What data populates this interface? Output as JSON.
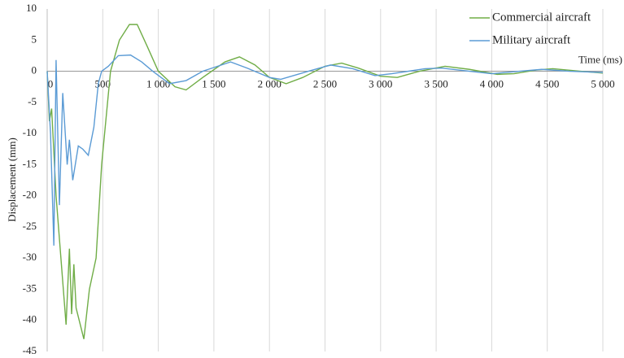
{
  "chart_data": {
    "type": "line",
    "xlabel": "Time (ms)",
    "ylabel": "Displacement (mm)",
    "xlim": [
      0,
      5000
    ],
    "ylim": [
      -45,
      10
    ],
    "xticks": [
      0,
      500,
      {
        "value": 1000,
        "label": "1 000"
      },
      {
        "value": 1500,
        "label": "1 500"
      },
      {
        "value": 2000,
        "label": "2 000"
      },
      {
        "value": 2500,
        "label": "2 500"
      },
      {
        "value": 3000,
        "label": "3 000"
      },
      {
        "value": 3500,
        "label": "3 500"
      },
      {
        "value": 4000,
        "label": "4 000"
      },
      {
        "value": 4500,
        "label": "4 500"
      },
      {
        "value": 5000,
        "label": "5 000"
      }
    ],
    "yticks": [
      10,
      5,
      0,
      -5,
      -10,
      -15,
      -20,
      -25,
      -30,
      -35,
      -40,
      -45
    ],
    "grid": true,
    "legend": "upper right",
    "series": [
      {
        "name": "Commercial aircraft",
        "color": "#70ad47",
        "x": [
          0,
          20,
          40,
          80,
          170,
          200,
          220,
          240,
          260,
          330,
          380,
          440,
          490,
          570,
          650,
          740,
          810,
          900,
          1000,
          1150,
          1250,
          1400,
          1600,
          1730,
          1870,
          2000,
          2150,
          2300,
          2500,
          2650,
          2800,
          3000,
          3150,
          3350,
          3580,
          3800,
          4050,
          4200,
          4400,
          4550,
          4800,
          5000
        ],
        "values": [
          0,
          -8,
          -6,
          -20,
          -40.7,
          -28.5,
          -39,
          -31,
          -38,
          -43,
          -35,
          -30,
          -15,
          0,
          5,
          7.5,
          7.5,
          4,
          0,
          -2.5,
          -3,
          -1,
          1.5,
          2.3,
          1,
          -1,
          -2,
          -1,
          0.8,
          1.3,
          0.5,
          -0.8,
          -1,
          0,
          0.8,
          0.3,
          -0.5,
          -0.4,
          0.2,
          0.4,
          0,
          -0.3
        ]
      },
      {
        "name": "Military aircraft",
        "color": "#5b9bd5",
        "x": [
          0,
          30,
          60,
          80,
          110,
          140,
          180,
          200,
          230,
          280,
          320,
          370,
          420,
          460,
          490,
          550,
          640,
          750,
          850,
          950,
          1100,
          1250,
          1400,
          1650,
          1800,
          2000,
          2100,
          2350,
          2550,
          2750,
          2950,
          3100,
          3400,
          3550,
          3800,
          4000,
          4250,
          4450,
          4700,
          5000
        ],
        "values": [
          0,
          -10,
          -28,
          1.8,
          -21.5,
          -3.5,
          -15,
          -11,
          -17.5,
          -12,
          -12.5,
          -13.5,
          -9,
          -2,
          0,
          0.8,
          2.5,
          2.6,
          1.5,
          0,
          -2,
          -1.5,
          0,
          1.5,
          0.5,
          -1,
          -1.3,
          0,
          1,
          0.4,
          -0.7,
          -0.4,
          0.4,
          0.5,
          0,
          -0.4,
          0,
          0.3,
          0,
          -0.2
        ]
      }
    ]
  }
}
